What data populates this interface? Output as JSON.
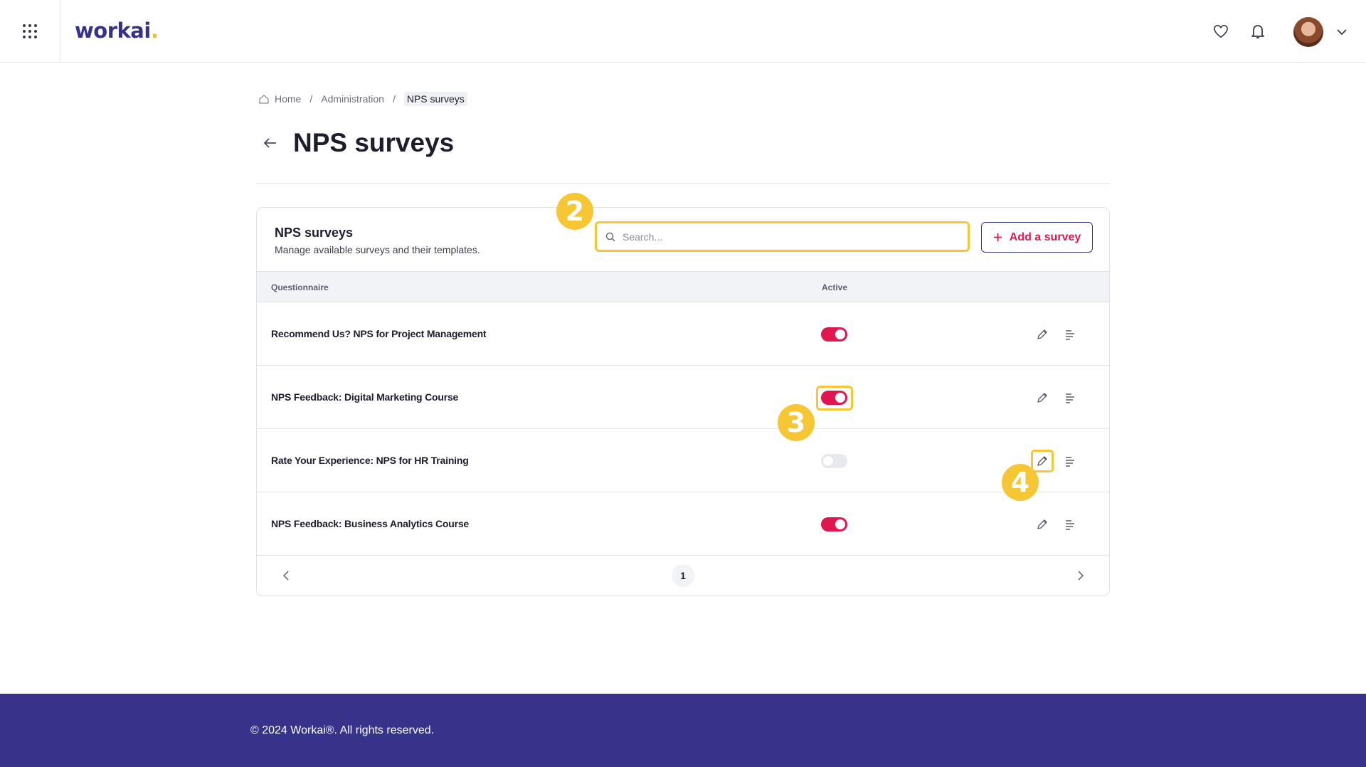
{
  "header": {
    "logo_text": "workai",
    "logo_dot": ".",
    "brand_color": "#36318a",
    "accent_color": "#f6c634",
    "icons": [
      "apps-grid-icon",
      "heart-icon",
      "bell-icon",
      "chevron-down-icon"
    ]
  },
  "breadcrumb": {
    "home": "Home",
    "separator": "/",
    "admin": "Administration",
    "current": "NPS surveys"
  },
  "page": {
    "title": "NPS surveys"
  },
  "card": {
    "title": "NPS surveys",
    "subtitle": "Manage available surveys and their templates.",
    "search_placeholder": "Search...",
    "search_value": "",
    "add_button": "Add a survey",
    "columns": {
      "questionnaire": "Questionnaire",
      "active": "Active"
    },
    "rows": [
      {
        "name": "Recommend Us? NPS for Project Management",
        "active": true
      },
      {
        "name": "NPS Feedback: Digital Marketing Course",
        "active": true
      },
      {
        "name": "Rate Your Experience: NPS for HR Training",
        "active": false
      },
      {
        "name": "NPS Feedback: Business Analytics Course",
        "active": true
      }
    ],
    "pagination": {
      "current_page": "1"
    }
  },
  "annotations": {
    "step_2": "2",
    "step_3": "3",
    "step_4": "4"
  },
  "footer": {
    "copyright": "© 2024 Workai®. All rights reserved."
  },
  "colors": {
    "toggle_on": "#e0164f",
    "toggle_off": "#e8e9ed",
    "footer_bg": "#37338a",
    "highlight": "#f6c634"
  }
}
